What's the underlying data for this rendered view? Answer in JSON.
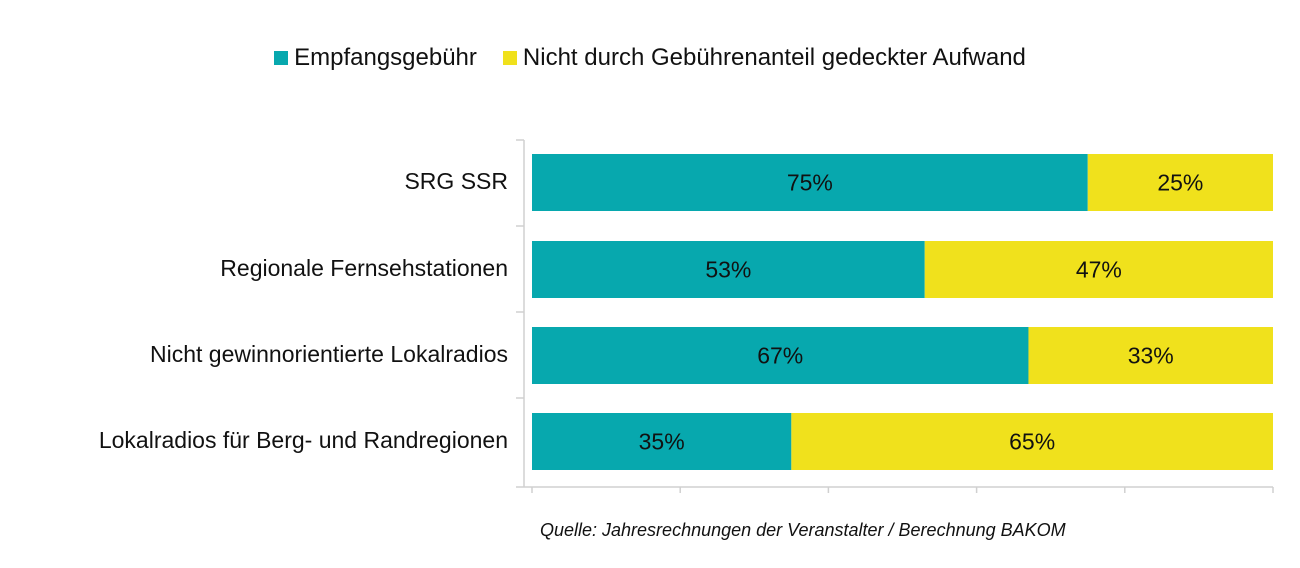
{
  "chart_data": {
    "type": "bar",
    "orientation": "horizontal",
    "stacked": true,
    "categories": [
      "SRG SSR",
      "Regionale Fernsehstationen",
      "Nicht gewinnorientierte Lokalradios",
      "Lokalradios für Berg- und Randregionen"
    ],
    "series": [
      {
        "name": "Empfangsgebühr",
        "values": [
          75,
          53,
          67,
          35
        ],
        "labels": [
          "75%",
          "53%",
          "67%",
          "35%"
        ],
        "color": "#07A8AE"
      },
      {
        "name": "Nicht durch Gebührenanteil gedeckter Aufwand",
        "values": [
          25,
          47,
          33,
          65
        ],
        "labels": [
          "25%",
          "47%",
          "33%",
          "65%"
        ],
        "color": "#F0E11C"
      }
    ],
    "xlim": [
      0,
      100
    ],
    "x_ticks": [
      0,
      20,
      40,
      60,
      80,
      100
    ],
    "grid": false,
    "legend_position": "top",
    "source": "Quelle: Jahresrechnungen der Veranstalter / Berechnung BAKOM"
  }
}
